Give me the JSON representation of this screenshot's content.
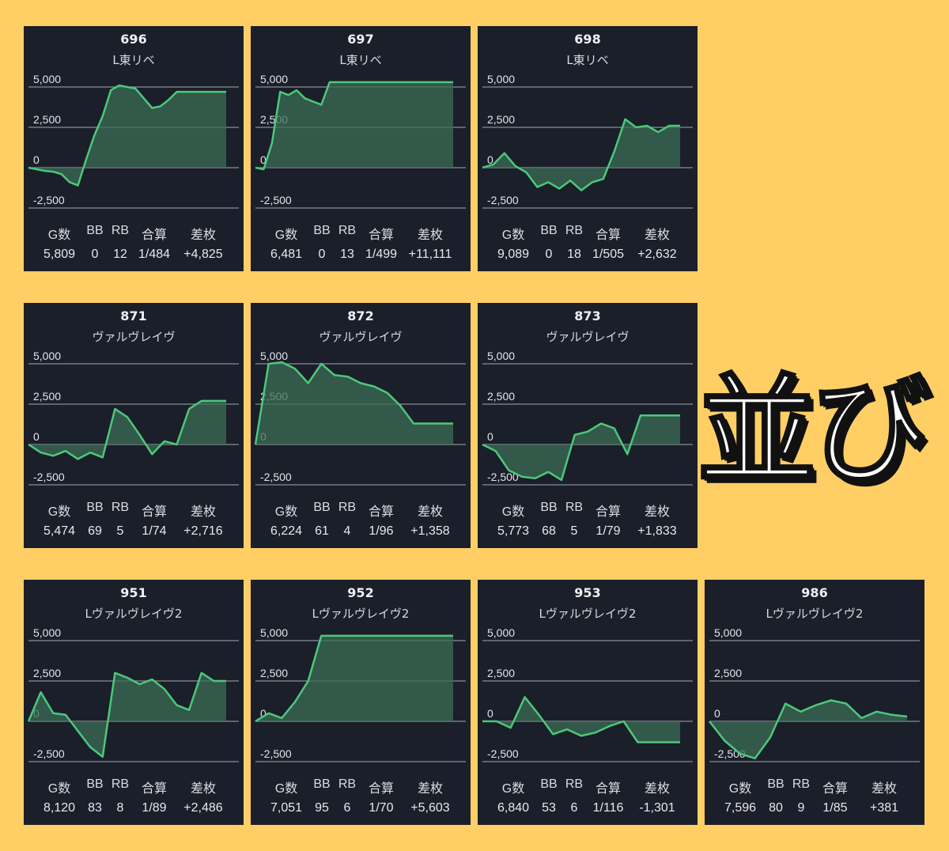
{
  "title": "並び",
  "colors": {
    "background": "#ffcf66",
    "card": "#1b1f2a",
    "line": "#4cc87a",
    "fill": "#3d7a5a"
  },
  "stat_headers": {
    "g": "G数",
    "bb": "BB",
    "rb": "RB",
    "total": "合算",
    "diff": "差枚"
  },
  "chart_data": [
    {
      "type": "area",
      "id": "696",
      "name": "L東リベ",
      "ylim": [
        -2500,
        5000
      ],
      "ticks": [
        "5,000",
        "2,500",
        "0",
        "-2,500"
      ],
      "values": [
        0,
        -100,
        -200,
        -250,
        -400,
        -900,
        -1100,
        500,
        2000,
        3200,
        4800,
        5100,
        5000,
        4900,
        4300,
        3700,
        3800,
        4200,
        4700,
        4700,
        4700,
        4700,
        4700,
        4700,
        4700
      ],
      "stats": {
        "g": "5,809",
        "bb": "0",
        "rb": "12",
        "total": "1/484",
        "diff": "+4,825"
      }
    },
    {
      "type": "area",
      "id": "697",
      "name": "L東リベ",
      "ylim": [
        -2500,
        5000
      ],
      "ticks": [
        "5,000",
        "2,500",
        "0",
        "-2,500"
      ],
      "values": [
        0,
        -100,
        1500,
        4700,
        4500,
        4800,
        4300,
        4100,
        3900,
        5300,
        5300,
        5300,
        5300,
        5300,
        5300,
        5300,
        5300,
        5300,
        5300,
        5300,
        5300,
        5300,
        5300,
        5300,
        5300
      ],
      "stats": {
        "g": "6,481",
        "bb": "0",
        "rb": "13",
        "total": "1/499",
        "diff": "+11,111"
      }
    },
    {
      "type": "area",
      "id": "698",
      "name": "L東リベ",
      "ylim": [
        -2500,
        5000
      ],
      "ticks": [
        "5,000",
        "2,500",
        "0",
        "-2,500"
      ],
      "values": [
        0,
        200,
        900,
        100,
        -300,
        -1200,
        -900,
        -1300,
        -800,
        -1400,
        -900,
        -700,
        1000,
        3000,
        2500,
        2600,
        2200,
        2600,
        2600
      ],
      "stats": {
        "g": "9,089",
        "bb": "0",
        "rb": "18",
        "total": "1/505",
        "diff": "+2,632"
      }
    },
    {
      "type": "area",
      "id": "871",
      "name": "ヴァルヴレイヴ",
      "ylim": [
        -2500,
        5000
      ],
      "ticks": [
        "5,000",
        "2,500",
        "0",
        "-2,500"
      ],
      "values": [
        0,
        -500,
        -700,
        -400,
        -900,
        -500,
        -800,
        2200,
        1700,
        600,
        -600,
        200,
        0,
        2200,
        2700,
        2700,
        2700
      ],
      "stats": {
        "g": "5,474",
        "bb": "69",
        "rb": "5",
        "total": "1/74",
        "diff": "+2,716"
      }
    },
    {
      "type": "area",
      "id": "872",
      "name": "ヴァルヴレイヴ",
      "ylim": [
        -2500,
        5000
      ],
      "ticks": [
        "5,000",
        "2,500",
        "0",
        "-2,500"
      ],
      "values": [
        0,
        5000,
        5100,
        4700,
        3800,
        5000,
        4300,
        4200,
        3800,
        3600,
        3200,
        2400,
        1300,
        1300,
        1300,
        1300
      ],
      "stats": {
        "g": "6,224",
        "bb": "61",
        "rb": "4",
        "total": "1/96",
        "diff": "+1,358"
      }
    },
    {
      "type": "area",
      "id": "873",
      "name": "ヴァルヴレイヴ",
      "ylim": [
        -2500,
        5000
      ],
      "ticks": [
        "5,000",
        "2,500",
        "0",
        "-2,500"
      ],
      "values": [
        0,
        -400,
        -1600,
        -2000,
        -2100,
        -1700,
        -2200,
        600,
        800,
        1300,
        1000,
        -600,
        1800,
        1800,
        1800,
        1800
      ],
      "stats": {
        "g": "5,773",
        "bb": "68",
        "rb": "5",
        "total": "1/79",
        "diff": "+1,833"
      }
    },
    {
      "type": "area",
      "id": "951",
      "name": "Lヴァルヴレイヴ2",
      "ylim": [
        -2500,
        5000
      ],
      "ticks": [
        "5,000",
        "2,500",
        "0",
        "-2,500"
      ],
      "values": [
        0,
        1800,
        500,
        400,
        -600,
        -1600,
        -2200,
        3000,
        2700,
        2300,
        2600,
        2000,
        1000,
        700,
        3000,
        2500,
        2500
      ],
      "stats": {
        "g": "8,120",
        "bb": "83",
        "rb": "8",
        "total": "1/89",
        "diff": "+2,486"
      }
    },
    {
      "type": "area",
      "id": "952",
      "name": "Lヴァルヴレイヴ2",
      "ylim": [
        -2500,
        5000
      ],
      "ticks": [
        "5,000",
        "2,500",
        "0",
        "-2,500"
      ],
      "values": [
        0,
        500,
        200,
        1200,
        2500,
        5300,
        5300,
        5300,
        5300,
        5300,
        5300,
        5300,
        5300,
        5300,
        5300,
        5300
      ],
      "stats": {
        "g": "7,051",
        "bb": "95",
        "rb": "6",
        "total": "1/70",
        "diff": "+5,603"
      }
    },
    {
      "type": "area",
      "id": "953",
      "name": "Lヴァルヴレイヴ2",
      "ylim": [
        -2500,
        5000
      ],
      "ticks": [
        "5,000",
        "2,500",
        "0",
        "-2,500"
      ],
      "values": [
        0,
        0,
        -400,
        1500,
        400,
        -800,
        -500,
        -900,
        -700,
        -300,
        0,
        -1300,
        -1300,
        -1300,
        -1300
      ],
      "stats": {
        "g": "6,840",
        "bb": "53",
        "rb": "6",
        "total": "1/116",
        "diff": "-1,301"
      }
    },
    {
      "type": "area",
      "id": "986",
      "name": "Lヴァルヴレイヴ2",
      "ylim": [
        -2500,
        5000
      ],
      "ticks": [
        "5,000",
        "2,500",
        "0",
        "-2,500"
      ],
      "values": [
        0,
        -1200,
        -2000,
        -2300,
        -1000,
        1100,
        600,
        1000,
        1300,
        1100,
        200,
        600,
        400,
        300
      ],
      "stats": {
        "g": "7,596",
        "bb": "80",
        "rb": "9",
        "total": "1/85",
        "diff": "+381"
      }
    }
  ]
}
